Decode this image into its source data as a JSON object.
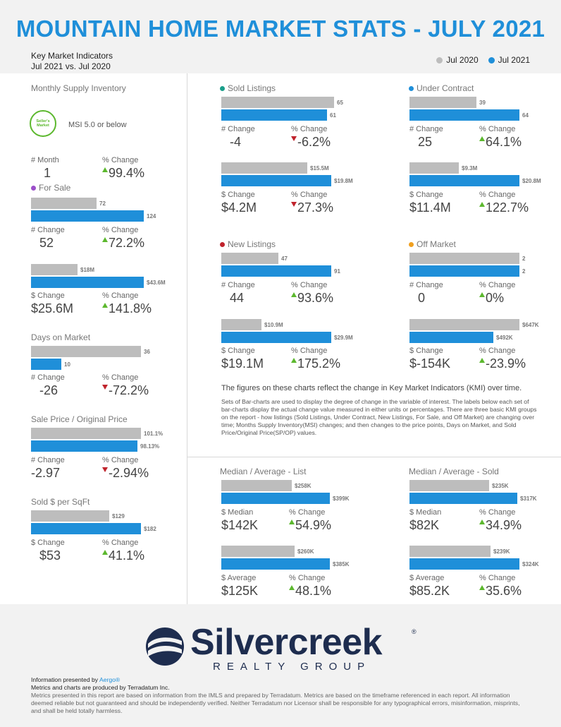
{
  "header": {
    "title": "MOUNTAIN HOME MARKET STATS - JULY 2021",
    "subtitle_line1": "Key Market Indicators",
    "subtitle_line2": "Jul 2021 vs. Jul 2020",
    "legend": [
      {
        "label": "Jul 2020",
        "color": "#bdbdbd"
      },
      {
        "label": "Jul 2021",
        "color": "#1f8fd9"
      }
    ]
  },
  "colors": {
    "prev": "#bdbdbd",
    "curr": "#1f8fd9",
    "up": "#5cb82e",
    "down": "#c0232c"
  },
  "msi": {
    "title": "Monthly Supply Inventory",
    "badge": "Seller's Market",
    "badge_text": "MSI 5.0 or below",
    "labels": [
      "# Month",
      "% Change"
    ],
    "values": [
      "1",
      "99.4%"
    ]
  },
  "chart_data": [
    {
      "id": "for-sale",
      "type": "bar",
      "title": "For Sale",
      "dot_color": "#9b4fc9",
      "categories": [
        "Jul 2020",
        "Jul 2021"
      ],
      "values": [
        72,
        124
      ],
      "value_labels": [
        "72",
        "124"
      ],
      "change_labels": [
        "# Change",
        "% Change"
      ],
      "changes": [
        "52",
        "72.2%"
      ],
      "direction": "up"
    },
    {
      "id": "for-sale-dollar",
      "type": "bar",
      "title": "",
      "categories": [
        "Jul 2020",
        "Jul 2021"
      ],
      "values": [
        18,
        43.6
      ],
      "value_labels": [
        "$18M",
        "$43.6M"
      ],
      "change_labels": [
        "$ Change",
        "% Change"
      ],
      "changes": [
        "$25.6M",
        "141.8%"
      ],
      "direction": "up"
    },
    {
      "id": "dom",
      "type": "bar",
      "title": "Days on Market",
      "categories": [
        "Jul 2020",
        "Jul 2021"
      ],
      "values": [
        36,
        10
      ],
      "value_labels": [
        "36",
        "10"
      ],
      "change_labels": [
        "# Change",
        "% Change"
      ],
      "changes": [
        "-26",
        "-72.2%"
      ],
      "direction": "down"
    },
    {
      "id": "sp-op",
      "type": "bar",
      "title": "Sale Price / Original Price",
      "categories": [
        "Jul 2020",
        "Jul 2021"
      ],
      "values": [
        101.1,
        98.13
      ],
      "value_labels": [
        "101.1%",
        "98.13%"
      ],
      "change_labels": [
        "# Change",
        "% Change"
      ],
      "changes": [
        "-2.97",
        "-2.94%"
      ],
      "direction": "down"
    },
    {
      "id": "sqft",
      "type": "bar",
      "title": "Sold $ per SqFt",
      "categories": [
        "Jul 2020",
        "Jul 2021"
      ],
      "values": [
        129,
        182
      ],
      "value_labels": [
        "$129",
        "$182"
      ],
      "change_labels": [
        "$ Change",
        "% Change"
      ],
      "changes": [
        "$53",
        "41.1%"
      ],
      "direction": "up"
    },
    {
      "id": "sold",
      "type": "bar",
      "title": "Sold Listings",
      "dot_color": "#1a9e8a",
      "categories": [
        "Jul 2020",
        "Jul 2021"
      ],
      "values": [
        65,
        61
      ],
      "value_labels": [
        "65",
        "61"
      ],
      "change_labels": [
        "# Change",
        "% Change"
      ],
      "changes": [
        "-4",
        "-6.2%"
      ],
      "direction": "down"
    },
    {
      "id": "sold-dollar",
      "type": "bar",
      "title": "",
      "categories": [
        "Jul 2020",
        "Jul 2021"
      ],
      "values": [
        15.5,
        19.8
      ],
      "value_labels": [
        "$15.5M",
        "$19.8M"
      ],
      "change_labels": [
        "$ Change",
        "% Change"
      ],
      "changes": [
        "$4.2M",
        "27.3%"
      ],
      "direction": "down"
    },
    {
      "id": "uc",
      "type": "bar",
      "title": "Under Contract",
      "dot_color": "#1f8fd9",
      "categories": [
        "Jul 2020",
        "Jul 2021"
      ],
      "values": [
        39,
        64
      ],
      "value_labels": [
        "39",
        "64"
      ],
      "change_labels": [
        "# Change",
        "% Change"
      ],
      "changes": [
        "25",
        "64.1%"
      ],
      "direction": "up"
    },
    {
      "id": "uc-dollar",
      "type": "bar",
      "title": "",
      "categories": [
        "Jul 2020",
        "Jul 2021"
      ],
      "values": [
        9.3,
        20.8
      ],
      "value_labels": [
        "$9.3M",
        "$20.8M"
      ],
      "change_labels": [
        "$ Change",
        "% Change"
      ],
      "changes": [
        "$11.4M",
        "122.7%"
      ],
      "direction": "up"
    },
    {
      "id": "new",
      "type": "bar",
      "title": "New Listings",
      "dot_color": "#c0232c",
      "categories": [
        "Jul 2020",
        "Jul 2021"
      ],
      "values": [
        47,
        91
      ],
      "value_labels": [
        "47",
        "91"
      ],
      "change_labels": [
        "# Change",
        "% Change"
      ],
      "changes": [
        "44",
        "93.6%"
      ],
      "direction": "up"
    },
    {
      "id": "new-dollar",
      "type": "bar",
      "title": "",
      "categories": [
        "Jul 2020",
        "Jul 2021"
      ],
      "values": [
        10.9,
        29.9
      ],
      "value_labels": [
        "$10.9M",
        "$29.9M"
      ],
      "change_labels": [
        "$ Change",
        "% Change"
      ],
      "changes": [
        "$19.1M",
        "175.2%"
      ],
      "direction": "up"
    },
    {
      "id": "off",
      "type": "bar",
      "title": "Off Market",
      "dot_color": "#f0a020",
      "categories": [
        "Jul 2020",
        "Jul 2021"
      ],
      "values": [
        2,
        2
      ],
      "value_labels": [
        "2",
        "2"
      ],
      "change_labels": [
        "# Change",
        "% Change"
      ],
      "changes": [
        "0",
        "0%"
      ],
      "direction": "up"
    },
    {
      "id": "off-dollar",
      "type": "bar",
      "title": "",
      "categories": [
        "Jul 2020",
        "Jul 2021"
      ],
      "values": [
        647,
        492
      ],
      "value_labels": [
        "$647K",
        "$492K"
      ],
      "change_labels": [
        "$ Change",
        "% Change"
      ],
      "changes": [
        "$-154K",
        "-23.9%"
      ],
      "direction": "up"
    },
    {
      "id": "list-median",
      "type": "bar",
      "title": "Median / Average - List",
      "categories": [
        "Jul 2020",
        "Jul 2021"
      ],
      "values": [
        258,
        399
      ],
      "value_labels": [
        "$258K",
        "$399K"
      ],
      "change_labels": [
        "$ Median",
        "% Change"
      ],
      "changes": [
        "$142K",
        "54.9%"
      ],
      "direction": "up"
    },
    {
      "id": "list-average",
      "type": "bar",
      "title": "",
      "categories": [
        "Jul 2020",
        "Jul 2021"
      ],
      "values": [
        260,
        385
      ],
      "value_labels": [
        "$260K",
        "$385K"
      ],
      "change_labels": [
        "$ Average",
        "% Change"
      ],
      "changes": [
        "$125K",
        "48.1%"
      ],
      "direction": "up"
    },
    {
      "id": "sold-median",
      "type": "bar",
      "title": "Median / Average - Sold",
      "categories": [
        "Jul 2020",
        "Jul 2021"
      ],
      "values": [
        235,
        317
      ],
      "value_labels": [
        "$235K",
        "$317K"
      ],
      "change_labels": [
        "$ Median",
        "% Change"
      ],
      "changes": [
        "$82K",
        "34.9%"
      ],
      "direction": "up"
    },
    {
      "id": "sold-average",
      "type": "bar",
      "title": "",
      "categories": [
        "Jul 2020",
        "Jul 2021"
      ],
      "values": [
        239,
        324
      ],
      "value_labels": [
        "$239K",
        "$324K"
      ],
      "change_labels": [
        "$ Average",
        "% Change"
      ],
      "changes": [
        "$85.2K",
        "35.6%"
      ],
      "direction": "up"
    }
  ],
  "notes": {
    "headline": "The figures on these charts reflect the change in Key Market Indicators (KMI) over time.",
    "body": "Sets of Bar-charts are used to display the degree of change in the variable of interest. The labels below each set of bar-charts display the actual change value measured in either units or percentages. There are three basic KMI groups on the report - how listings (Sold Listings, Under Contract, New Listings, For Sale, and Off Market) are changing over time; Months Supply Inventory(MSI) changes; and then changes to the price points, Days on Market, and Sold Price/Original Price(SP/OP) values."
  },
  "logo": {
    "name": "Silvercreek",
    "tagline": "REALTY GROUP",
    "reg": "®"
  },
  "footer": {
    "presented_prefix": "Information presented by ",
    "presented_by": "Aergo®",
    "produced": "Metrics and charts are produced by Terradatum Inc.",
    "disclaimer": "Metrics presented in this report are based on information from the IMLS and prepared by Terradatum. Metrics are based on the timeframe referenced in each report. All information deemed reliable but not guaranteed and should be independently verified. Neither Terradatum nor Licensor shall be responsible for any typographical errors, misinformation, misprints, and shall be held totally harmless."
  }
}
